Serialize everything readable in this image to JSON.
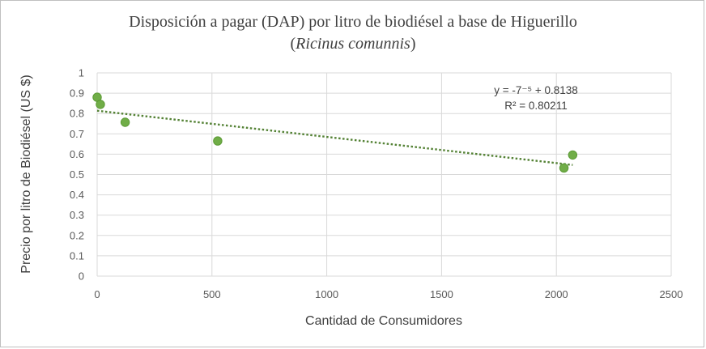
{
  "chart_data": {
    "type": "scatter",
    "title": "Disposición a pagar (DAP) por litro de biodiésel a base de Higuerillo",
    "subtitle_open": "(",
    "subtitle": "Ricinus comunnis",
    "subtitle_close": ")",
    "xlabel": "Cantidad de Consumidores",
    "ylabel": "Precio  por litro de Biodiésel (US $)",
    "xlim": [
      0,
      2500
    ],
    "ylim": [
      0,
      1
    ],
    "xticks": [
      "0",
      "500",
      "1000",
      "1500",
      "2000",
      "2500"
    ],
    "yticks": [
      "0",
      "0.1",
      "0.2",
      "0.3",
      "0.4",
      "0.5",
      "0.6",
      "0.7",
      "0.8",
      "0.9",
      "1"
    ],
    "grid": true,
    "legend": "none",
    "series": [
      {
        "x": [
          0,
          14,
          122,
          525,
          2033,
          2071
        ],
        "y": [
          0.88,
          0.845,
          0.757,
          0.665,
          0.532,
          0.596
        ]
      }
    ],
    "trendline": {
      "type": "linear",
      "x_range": [
        0,
        2071
      ],
      "y_start": 0.8138,
      "y_end": 0.547,
      "equation": "y = -7⁻⁵ + 0.8138",
      "r_squared": "R² = 0.80211"
    },
    "colors": {
      "marker": "#70ad47",
      "marker_edge": "#5b9a35",
      "trendline": "#548235",
      "grid": "#d9d9d9"
    }
  }
}
